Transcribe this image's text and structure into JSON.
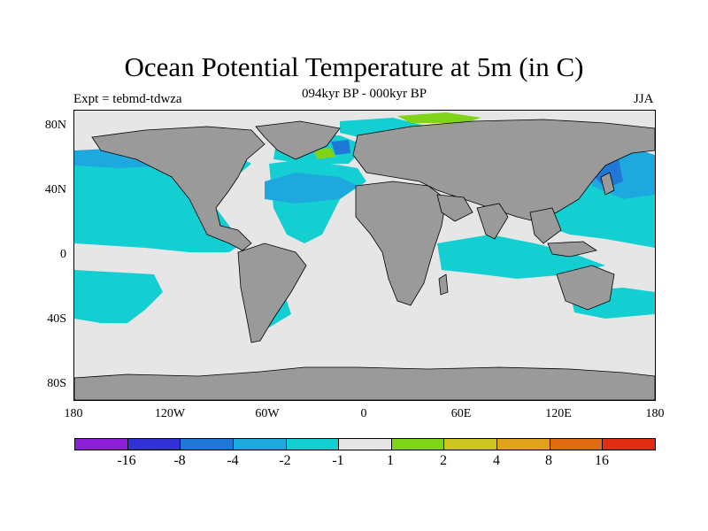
{
  "title": "Ocean Potential Temperature at 5m (in C)",
  "subtitle_left": "Expt = tebmd-tdwza",
  "subtitle_center": "094kyr BP - 000kyr BP",
  "subtitle_right": "JJA",
  "lat_labels": [
    "80N",
    "40N",
    "0",
    "40S",
    "80S"
  ],
  "lon_labels": [
    "180",
    "120W",
    "60W",
    "0",
    "60E",
    "120E",
    "180"
  ],
  "colorbar": {
    "labels": [
      "-16",
      "-8",
      "-4",
      "-2",
      "-1",
      "1",
      "2",
      "4",
      "8",
      "16"
    ],
    "colors": [
      "#8a1fd6",
      "#3131d6",
      "#1f78d6",
      "#1ea9de",
      "#14cfd2",
      "#e6e6e6",
      "#80d418",
      "#ccc51f",
      "#e0a21a",
      "#e06a14",
      "#e02d14"
    ]
  },
  "map_colors": {
    "land": "#9a9a9a",
    "ocean_neutral": "#e6e6e6",
    "cyan_band": "#14cfd2",
    "blue_band": "#1ea9de",
    "deep_blue": "#1f78d6",
    "green": "#80d418"
  }
}
